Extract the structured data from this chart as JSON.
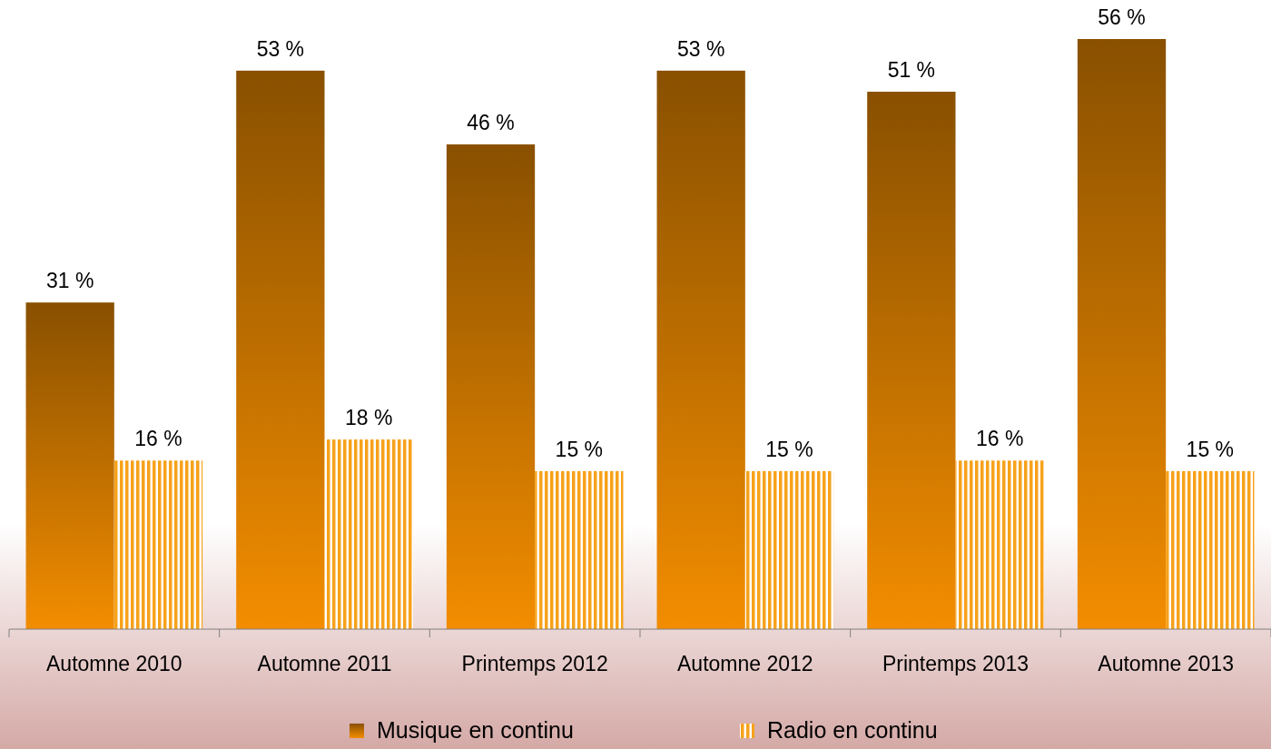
{
  "chart_data": {
    "type": "bar",
    "categories": [
      "Automne 2010",
      "Automne 2011",
      "Printemps 2012",
      "Automne 2012",
      "Printemps 2013",
      "Automne 2013"
    ],
    "series": [
      {
        "name": "Musique en continu",
        "color": "#c47200",
        "values": [
          31,
          53,
          46,
          53,
          51,
          56
        ],
        "value_labels": [
          "31 %",
          "53 %",
          "46 %",
          "53 %",
          "51 %",
          "56 %"
        ]
      },
      {
        "name": "Radio en continu",
        "color": "#f7a21b",
        "values": [
          16,
          18,
          15,
          15,
          16,
          15
        ],
        "value_labels": [
          "16 %",
          "18 %",
          "15 %",
          "15 %",
          "16 %",
          "15 %"
        ]
      }
    ],
    "legend": "bottom"
  }
}
